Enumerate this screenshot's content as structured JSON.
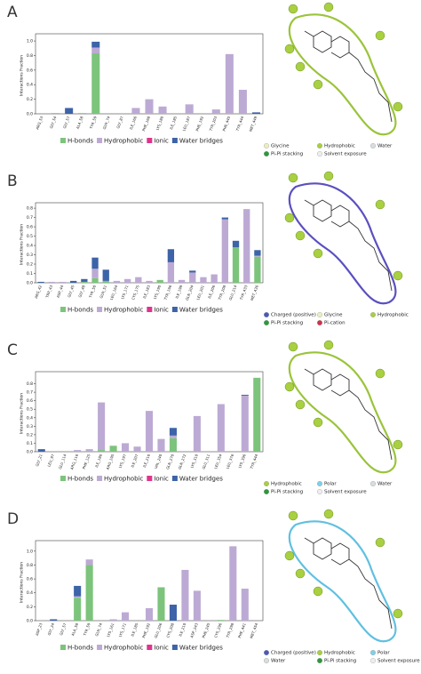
{
  "chart_data": [
    {
      "type": "bar",
      "panel": "A",
      "ylabel": "Interactions Fraction",
      "categories": [
        "ARG_53",
        "GLY_54",
        "GLY_57",
        "ALA_58",
        "TYR_59",
        "GLN_74",
        "GLY_87",
        "ILE_166",
        "PHE_168",
        "LYS_180",
        "ILE_185",
        "LEU_187",
        "PHE_192",
        "TYR_203",
        "PHE_445",
        "TYR_444",
        "MET_449"
      ],
      "series": [
        {
          "name": "H-bonds",
          "color": "#7cc47c",
          "values": [
            0,
            0.01,
            0,
            0.01,
            0.83,
            0,
            0,
            0,
            0,
            0,
            0,
            0,
            0,
            0,
            0,
            0,
            0
          ]
        },
        {
          "name": "Hydrophobic",
          "color": "#bcaad4",
          "values": [
            0,
            0,
            0,
            0,
            0.08,
            0,
            0,
            0.08,
            0.2,
            0.1,
            0,
            0.13,
            0,
            0.06,
            0.82,
            0.33,
            0
          ]
        },
        {
          "name": "Ionic",
          "color": "#e0338c",
          "values": [
            0,
            0,
            0,
            0,
            0,
            0,
            0,
            0,
            0,
            0,
            0,
            0,
            0,
            0,
            0,
            0,
            0
          ]
        },
        {
          "name": "Water bridges",
          "color": "#3d63a8",
          "values": [
            0,
            0,
            0.08,
            0,
            0.08,
            0,
            0,
            0,
            0,
            0,
            0,
            0,
            0,
            0,
            0,
            0,
            0.02
          ]
        }
      ],
      "ylim": [
        0,
        1.05
      ],
      "yticks": [
        {
          "value": 0,
          "label": "0.0"
        },
        0.2,
        0.4,
        0.6,
        0.8,
        {
          "value": 1,
          "label": "1.0"
        }
      ]
    },
    {
      "type": "bar",
      "panel": "B",
      "ylabel": "Interactions Fraction",
      "categories": [
        "ARG_42",
        "TRP_43",
        "ASP_44",
        "GLY_45",
        "GLY_48",
        "TYR_50",
        "GLN_51",
        "LEU_164",
        "LYS_171",
        "CYS_175",
        "ILE_183",
        "LYS_190",
        "TYR_196",
        "ILE_199",
        "GLN_204",
        "LEU_201",
        "ILE_206",
        "TYR_208",
        "GLU_214",
        "TYR_433",
        "MET_436"
      ],
      "series": [
        {
          "name": "H-bonds",
          "color": "#7cc47c",
          "values": [
            0,
            0,
            0,
            0,
            0.01,
            0.05,
            0.02,
            0,
            0,
            0,
            0,
            0.03,
            0,
            0,
            0,
            0,
            0,
            0,
            0.38,
            0,
            0.28
          ]
        },
        {
          "name": "Hydrophobic",
          "color": "#bcaad4",
          "values": [
            0,
            0.01,
            0.01,
            0,
            0,
            0.1,
            0,
            0.02,
            0.04,
            0.06,
            0.02,
            0,
            0.22,
            0.03,
            0.11,
            0.06,
            0.09,
            0.68,
            0,
            0.79,
            0.01
          ]
        },
        {
          "name": "Ionic",
          "color": "#e0338c",
          "values": [
            0,
            0,
            0,
            0,
            0,
            0,
            0,
            0,
            0,
            0,
            0,
            0,
            0,
            0,
            0,
            0,
            0,
            0,
            0,
            0,
            0
          ]
        },
        {
          "name": "Water bridges",
          "color": "#3d63a8",
          "values": [
            0.01,
            0,
            0,
            0.02,
            0.03,
            0.12,
            0.12,
            0,
            0,
            0,
            0,
            0,
            0.14,
            0,
            0.02,
            0,
            0,
            0.02,
            0.07,
            0,
            0.06
          ]
        }
      ],
      "ylim": [
        0,
        0.82
      ],
      "yticks": [
        {
          "value": 0,
          "label": "0.0"
        },
        0.1,
        0.2,
        0.3,
        0.4,
        0.5,
        0.6,
        0.7,
        0.8
      ]
    },
    {
      "type": "bar",
      "panel": "C",
      "ylabel": "Interactions Fraction",
      "categories": [
        "GLY_21",
        "LEU_97",
        "GLU_114",
        "ARG_116",
        "PHE_125",
        "ILE_186",
        "ARG_195",
        "LYS_197",
        "ILE_207",
        "ILE_216",
        "VAL_240",
        "GLN_270",
        "GLN_272",
        "LYS_310",
        "GLU_311",
        "LEU_354",
        "LEU_376",
        "LYS_396",
        "TYR_444"
      ],
      "series": [
        {
          "name": "H-bonds",
          "color": "#7cc47c",
          "values": [
            0,
            0,
            0,
            0,
            0,
            0.02,
            0.07,
            0,
            0,
            0,
            0,
            0.16,
            0,
            0,
            0,
            0,
            0,
            0,
            0.87
          ]
        },
        {
          "name": "Hydrophobic",
          "color": "#bcaad4",
          "values": [
            0,
            0,
            0,
            0.02,
            0.03,
            0.56,
            0,
            0.1,
            0.06,
            0.48,
            0.15,
            0.03,
            0,
            0.42,
            0,
            0.56,
            0,
            0.66,
            0
          ]
        },
        {
          "name": "Ionic",
          "color": "#e0338c",
          "values": [
            0,
            0,
            0,
            0,
            0,
            0,
            0,
            0,
            0,
            0,
            0,
            0,
            0,
            0,
            0,
            0,
            0,
            0,
            0
          ]
        },
        {
          "name": "Water bridges",
          "color": "#3d63a8",
          "values": [
            0.03,
            0,
            0,
            0,
            0,
            0,
            0,
            0,
            0,
            0,
            0,
            0.09,
            0,
            0,
            0,
            0,
            0,
            0.01,
            0
          ]
        }
      ],
      "ylim": [
        0,
        0.9
      ],
      "yticks": [
        {
          "value": 0,
          "label": "0.0"
        },
        0.1,
        0.2,
        0.3,
        0.4,
        0.5,
        0.6,
        0.7,
        0.8
      ]
    },
    {
      "type": "bar",
      "panel": "D",
      "ylabel": "Interactions Fraction",
      "categories": [
        "ASP_23",
        "GLY_24",
        "GLY_57",
        "ALA_58",
        "TYR_59",
        "GLN_74",
        "LYS_161",
        "LYS_171",
        "ILE_185",
        "PHE_192",
        "GLU_206",
        "CYS_208",
        "ILE_210",
        "ASP_243",
        "PHE_245",
        "CYS_296",
        "TYR_298",
        "PHE_441",
        "MET_454"
      ],
      "series": [
        {
          "name": "H-bonds",
          "color": "#7cc47c",
          "values": [
            0,
            0,
            0,
            0.33,
            0.8,
            0,
            0,
            0,
            0,
            0,
            0.48,
            0,
            0,
            0,
            0,
            0.01,
            0,
            0,
            0
          ]
        },
        {
          "name": "Hydrophobic",
          "color": "#bcaad4",
          "values": [
            0,
            0,
            0,
            0.02,
            0.08,
            0,
            0.02,
            0.12,
            0,
            0.18,
            0,
            0,
            0.73,
            0.43,
            0,
            0,
            1.07,
            0.46,
            0
          ]
        },
        {
          "name": "Ionic",
          "color": "#e0338c",
          "values": [
            0,
            0,
            0,
            0,
            0,
            0,
            0,
            0,
            0,
            0,
            0,
            0,
            0,
            0,
            0,
            0,
            0,
            0,
            0
          ]
        },
        {
          "name": "Water bridges",
          "color": "#3d63a8",
          "values": [
            0,
            0.02,
            0,
            0.15,
            0,
            0,
            0,
            0,
            0,
            0,
            0,
            0.23,
            0,
            0,
            0,
            0,
            0,
            0,
            0
          ]
        }
      ],
      "ylim": [
        0,
        1.1
      ],
      "yticks": [
        {
          "value": 0,
          "label": "0.0"
        },
        0.2,
        0.4,
        0.6,
        0.8,
        {
          "value": 1,
          "label": "1.0"
        }
      ]
    }
  ],
  "diagrams": [
    {
      "legend": [
        {
          "text": "Glycine",
          "color": "#e8f0c0"
        },
        {
          "text": "Hydrophobic",
          "color": "#a8d040"
        },
        {
          "text": "Water",
          "color": "#d8dde0"
        },
        {
          "text": "Pi-Pi stacking",
          "color": "#2a9a3a"
        },
        {
          "text": "Solvent exposure",
          "color": "#eeeeee"
        }
      ]
    },
    {
      "legend": [
        {
          "text": "Charged (positive)",
          "color": "#4a5ab8"
        },
        {
          "text": "Glycine",
          "color": "#e8f0c0"
        },
        {
          "text": "Hydrophobic",
          "color": "#a8d040"
        },
        {
          "text": "Pi-Pi stacking",
          "color": "#2a9a3a"
        },
        {
          "text": "Pi-cation",
          "color": "#d0304a"
        }
      ]
    },
    {
      "legend": [
        {
          "text": "Hydrophobic",
          "color": "#a8d040"
        },
        {
          "text": "Polar",
          "color": "#80d0e8"
        },
        {
          "text": "Water",
          "color": "#d8dde0"
        },
        {
          "text": "Pi-Pi stacking",
          "color": "#2a9a3a"
        },
        {
          "text": "Solvent exposure",
          "color": "#eeeeee"
        }
      ]
    },
    {
      "legend": [
        {
          "text": "Charged (positive)",
          "color": "#4a5ab8"
        },
        {
          "text": "Hydrophobic",
          "color": "#a8d040"
        },
        {
          "text": "Polar",
          "color": "#80d0e8"
        },
        {
          "text": "Water",
          "color": "#d8dde0"
        },
        {
          "text": "Pi-Pi stacking",
          "color": "#2a9a3a"
        },
        {
          "text": "Solvent exposure",
          "color": "#eeeeee"
        }
      ]
    }
  ]
}
